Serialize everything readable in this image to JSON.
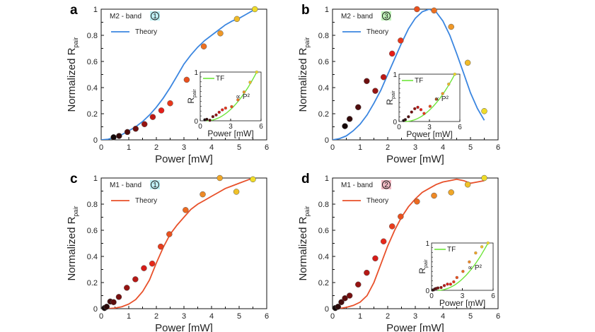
{
  "chart_data": [
    {
      "panel": "a",
      "type": "scatter",
      "band_label": "M2 - band",
      "badge": "1",
      "badge_color": "#bdf0f5",
      "xlabel": "Power [mW]",
      "ylabel": "Normalized R",
      "ylabel_sub": "pair",
      "xlim": [
        0,
        6
      ],
      "ylim": [
        0,
        1
      ],
      "xticks": [
        "0",
        "1",
        "2",
        "3",
        "4",
        "5",
        "6"
      ],
      "yticks": [
        "0",
        "0.2",
        "0.4",
        "0.6",
        "0.8",
        "1"
      ],
      "theory": {
        "name": "Theory",
        "color": "#3b86e0",
        "x": [
          0,
          0.25,
          0.5,
          0.75,
          1,
          1.25,
          1.5,
          1.75,
          2,
          2.25,
          2.5,
          2.75,
          3,
          3.25,
          3.5,
          3.75,
          4,
          4.25,
          4.5,
          4.75,
          5,
          5.25,
          5.5
        ],
        "y": [
          0,
          0.005,
          0.02,
          0.04,
          0.07,
          0.1,
          0.14,
          0.19,
          0.25,
          0.32,
          0.4,
          0.49,
          0.58,
          0.65,
          0.71,
          0.76,
          0.8,
          0.84,
          0.88,
          0.91,
          0.93,
          0.96,
          0.99
        ]
      },
      "points": {
        "x": [
          0.45,
          0.65,
          0.95,
          1.25,
          1.57,
          1.87,
          2.18,
          2.5,
          3.1,
          3.72,
          4.32,
          4.92,
          5.57
        ],
        "y": [
          0.02,
          0.03,
          0.06,
          0.085,
          0.12,
          0.175,
          0.225,
          0.28,
          0.46,
          0.715,
          0.815,
          0.925,
          1.0
        ]
      },
      "inset": {
        "xlabel": "Power [mW]",
        "ylabel": "R",
        "ylabel_sub": "pair",
        "xlim": [
          0,
          6
        ],
        "ylim": [
          0,
          1
        ],
        "xticks": [
          "0",
          "3",
          "6"
        ],
        "yticks": [
          "0",
          "1"
        ],
        "fit_name": "TF",
        "fit_color": "#6ee63a",
        "annotation": "∝ P²",
        "points": {
          "x": [
            0.45,
            0.65,
            0.95,
            1.25,
            1.57,
            1.87,
            2.18,
            2.5,
            3.1,
            3.72,
            4.32,
            4.92,
            5.57
          ],
          "y": [
            0.02,
            0.03,
            0.01,
            0.085,
            0.12,
            0.175,
            0.225,
            0.26,
            0.29,
            0.43,
            0.59,
            0.79,
            1.0
          ]
        }
      }
    },
    {
      "panel": "b",
      "type": "scatter",
      "band_label": "M2 - band",
      "badge": "3",
      "badge_color": "#bff2b8",
      "xlabel": "Power [mW]",
      "ylabel": "Normalized R",
      "ylabel_sub": "pair",
      "xlim": [
        0,
        6
      ],
      "ylim": [
        0,
        1
      ],
      "xticks": [
        "0",
        "1",
        "2",
        "3",
        "4",
        "5",
        "6"
      ],
      "yticks": [
        "0",
        "0.2",
        "0.4",
        "0.6",
        "0.8",
        "1"
      ],
      "theory": {
        "name": "Theory",
        "color": "#3b86e0",
        "x": [
          0,
          0.25,
          0.5,
          0.75,
          1,
          1.25,
          1.5,
          1.75,
          2,
          2.25,
          2.5,
          2.75,
          3,
          3.25,
          3.5,
          3.75,
          4,
          4.25,
          4.5,
          4.75,
          5,
          5.25,
          5.5
        ],
        "y": [
          0,
          0.01,
          0.03,
          0.07,
          0.12,
          0.19,
          0.28,
          0.38,
          0.5,
          0.62,
          0.74,
          0.85,
          0.93,
          0.98,
          1.0,
          0.98,
          0.91,
          0.8,
          0.66,
          0.51,
          0.36,
          0.24,
          0.15
        ]
      },
      "points": {
        "x": [
          0.45,
          0.62,
          0.93,
          1.24,
          1.55,
          1.85,
          2.16,
          2.47,
          3.06,
          3.68,
          4.3,
          4.9,
          5.5
        ],
        "y": [
          0.105,
          0.16,
          0.25,
          0.45,
          0.375,
          0.48,
          0.66,
          0.76,
          1.0,
          0.99,
          0.865,
          0.59,
          0.22
        ]
      },
      "inset": {
        "xlabel": "Power [mW]",
        "ylabel": "R",
        "ylabel_sub": "pair",
        "xlim": [
          0,
          6
        ],
        "ylim": [
          0,
          1
        ],
        "xticks": [
          "0",
          "3",
          "6"
        ],
        "yticks": [
          "0",
          "1"
        ],
        "fit_name": "TF",
        "fit_color": "#6ee63a",
        "annotation": "∝ P²",
        "points": {
          "x": [
            0.45,
            0.62,
            0.93,
            1.24,
            1.55,
            1.85,
            2.16,
            2.47,
            3.06,
            3.68,
            4.3,
            4.9,
            5.5
          ],
          "y": [
            0.02,
            0.04,
            0.1,
            0.2,
            0.27,
            0.3,
            0.25,
            0.17,
            0.32,
            0.47,
            0.59,
            0.79,
            1.0
          ]
        }
      }
    },
    {
      "panel": "c",
      "type": "scatter",
      "band_label": "M1 - band",
      "badge": "1",
      "badge_color": "#bdf0f5",
      "xlabel": "Power [mW]",
      "ylabel": "Normalized R",
      "ylabel_sub": "pair",
      "xlim": [
        0,
        6
      ],
      "ylim": [
        0,
        1
      ],
      "xticks": [
        "0",
        "1",
        "2",
        "3",
        "4",
        "5",
        "6"
      ],
      "yticks": [
        "0",
        "0.2",
        "0.4",
        "0.6",
        "0.8",
        "1"
      ],
      "theory": {
        "name": "Theory",
        "color": "#e8502a",
        "x": [
          0.2,
          0.5,
          0.75,
          1,
          1.25,
          1.5,
          1.75,
          2,
          2.25,
          2.5,
          2.75,
          3,
          3.25,
          3.5,
          3.75,
          4,
          4.25,
          4.5,
          4.75,
          5,
          5.25,
          5.5
        ],
        "y": [
          0,
          0.005,
          0.015,
          0.035,
          0.07,
          0.13,
          0.22,
          0.35,
          0.47,
          0.57,
          0.64,
          0.7,
          0.76,
          0.8,
          0.83,
          0.86,
          0.89,
          0.92,
          0.94,
          0.96,
          0.98,
          1.0
        ]
      },
      "points": {
        "x": [
          0.12,
          0.2,
          0.33,
          0.45,
          0.64,
          0.93,
          1.24,
          1.55,
          1.85,
          2.16,
          2.47,
          3.06,
          3.68,
          4.3,
          4.9,
          5.5
        ],
        "y": [
          0.005,
          0.015,
          0.055,
          0.05,
          0.09,
          0.16,
          0.225,
          0.31,
          0.345,
          0.475,
          0.57,
          0.755,
          0.875,
          1.0,
          0.895,
          0.99
        ]
      }
    },
    {
      "panel": "d",
      "type": "scatter",
      "band_label": "M1 - band",
      "badge": "2",
      "badge_color": "#f0b8c2",
      "xlabel": "Power [mW]",
      "ylabel": "Normalized R",
      "ylabel_sub": "pair",
      "xlim": [
        0,
        6
      ],
      "ylim": [
        0,
        1
      ],
      "xticks": [
        "0",
        "1",
        "2",
        "3",
        "4",
        "5",
        "6"
      ],
      "yticks": [
        "0",
        "0.2",
        "0.4",
        "0.6",
        "0.8",
        "1"
      ],
      "theory": {
        "name": "Theory",
        "color": "#e8502a",
        "x": [
          0.2,
          0.5,
          0.75,
          1,
          1.25,
          1.5,
          1.75,
          2,
          2.25,
          2.5,
          2.75,
          3,
          3.25,
          3.5,
          3.75,
          4,
          4.25,
          4.5,
          4.75,
          5,
          5.25,
          5.5
        ],
        "y": [
          0,
          0.01,
          0.025,
          0.05,
          0.1,
          0.2,
          0.34,
          0.48,
          0.6,
          0.7,
          0.78,
          0.84,
          0.89,
          0.92,
          0.95,
          0.97,
          0.98,
          0.99,
          0.98,
          0.96,
          0.97,
          0.98
        ]
      },
      "points": {
        "x": [
          0.1,
          0.2,
          0.32,
          0.45,
          0.62,
          0.93,
          1.24,
          1.55,
          1.85,
          2.16,
          2.47,
          3.06,
          3.68,
          4.3,
          4.9,
          5.5
        ],
        "y": [
          0.005,
          0.015,
          0.05,
          0.08,
          0.1,
          0.185,
          0.275,
          0.385,
          0.515,
          0.63,
          0.705,
          0.82,
          0.865,
          0.89,
          0.95,
          1.0
        ]
      },
      "inset": {
        "xlabel": "Power [mW]",
        "ylabel": "R",
        "ylabel_sub": "pair",
        "xlim": [
          0,
          6
        ],
        "ylim": [
          0,
          1
        ],
        "xticks": [
          "0",
          "3",
          "6"
        ],
        "yticks": [
          "0",
          "1"
        ],
        "fit_name": "TF",
        "fit_color": "#6ee63a",
        "annotation": "∝ P²",
        "points": {
          "x": [
            0.1,
            0.2,
            0.32,
            0.45,
            0.62,
            0.93,
            1.24,
            1.55,
            1.85,
            2.16,
            2.47,
            3.06,
            3.68,
            4.3,
            4.9,
            5.5
          ],
          "y": [
            0.005,
            0.01,
            0.03,
            0.04,
            0.05,
            0.06,
            0.1,
            0.13,
            0.13,
            0.18,
            0.27,
            0.4,
            0.6,
            0.79,
            0.92,
            1.0
          ]
        }
      }
    }
  ]
}
